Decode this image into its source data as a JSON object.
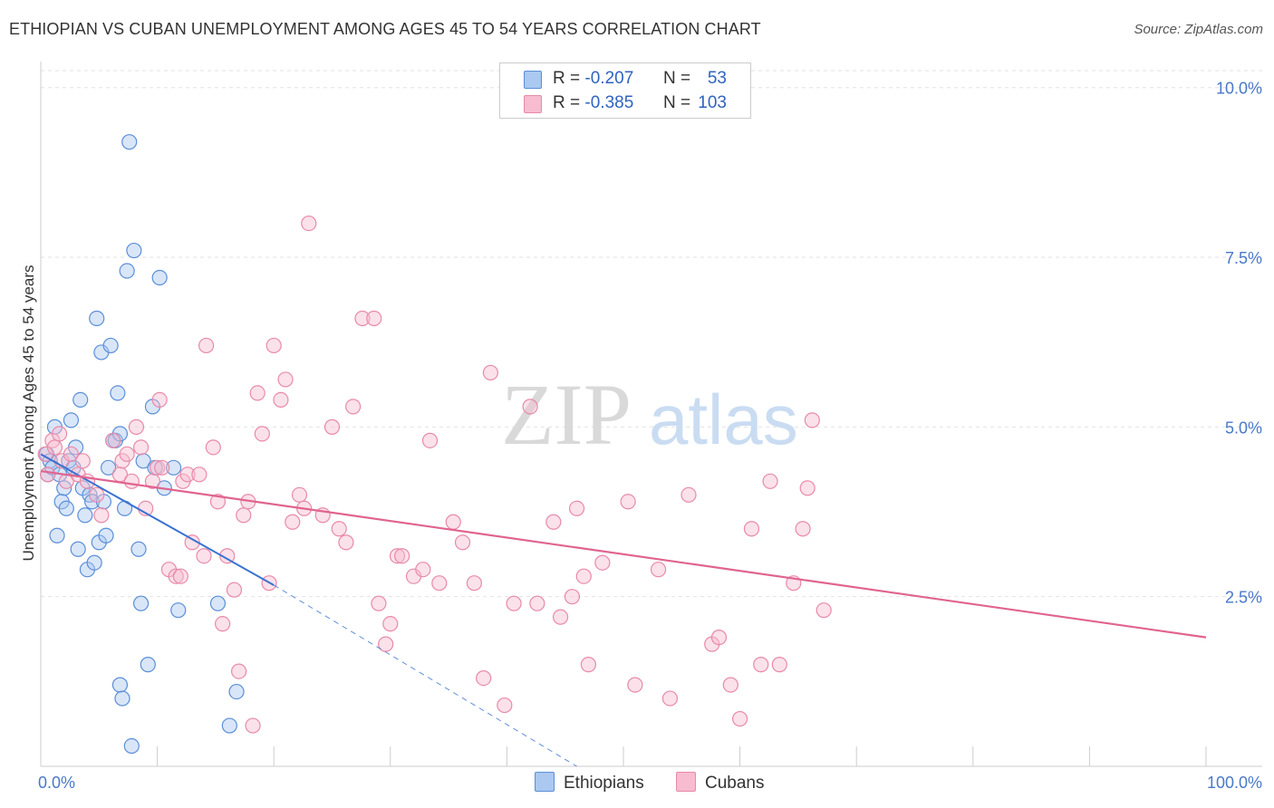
{
  "title": "ETHIOPIAN VS CUBAN UNEMPLOYMENT AMONG AGES 45 TO 54 YEARS CORRELATION CHART",
  "source": "Source: ZipAtlas.com",
  "watermark": {
    "zip": "ZIP",
    "atlas": "atlas"
  },
  "legend": {
    "rows": [
      {
        "r_label": "R =",
        "r_value": "-0.207",
        "n_label": "N =",
        "n_value": "53"
      },
      {
        "r_label": "R =",
        "r_value": "-0.385",
        "n_label": "N =",
        "n_value": "103"
      }
    ],
    "bottom": [
      {
        "label": "Ethiopians"
      },
      {
        "label": "Cubans"
      }
    ]
  },
  "colors": {
    "ethiopians_fill": "#aac8f0",
    "ethiopians_stroke": "#5b8fd8",
    "ethiopians_line": "#3a72d0",
    "cubans_fill": "#f7bcd0",
    "cubans_stroke": "#e88aa8",
    "cubans_line": "#e0648f",
    "grid": "#e2e2e2",
    "axis": "#cccccc"
  },
  "chart_data": {
    "type": "scatter",
    "title": "ETHIOPIAN VS CUBAN UNEMPLOYMENT AMONG AGES 45 TO 54 YEARS CORRELATION CHART",
    "xlabel": "",
    "ylabel": "Unemployment Among Ages 45 to 54 years",
    "xlim": [
      0,
      100
    ],
    "ylim": [
      0,
      10.25
    ],
    "x_tick_labels": [
      "0.0%",
      "100.0%"
    ],
    "y_ticks": [
      2.5,
      5.0,
      7.5,
      10.0
    ],
    "y_tick_labels": [
      "2.5%",
      "5.0%",
      "7.5%",
      "10.0%"
    ],
    "series": [
      {
        "name": "Ethiopians",
        "points": [
          [
            0.5,
            4.6
          ],
          [
            0.6,
            4.3
          ],
          [
            0.8,
            4.5
          ],
          [
            1.0,
            4.4
          ],
          [
            1.2,
            5.0
          ],
          [
            1.4,
            3.4
          ],
          [
            1.6,
            4.3
          ],
          [
            1.8,
            3.9
          ],
          [
            2.0,
            4.1
          ],
          [
            2.2,
            3.8
          ],
          [
            2.4,
            4.5
          ],
          [
            2.6,
            5.1
          ],
          [
            2.8,
            4.4
          ],
          [
            3.0,
            4.7
          ],
          [
            3.2,
            3.2
          ],
          [
            3.4,
            5.4
          ],
          [
            3.6,
            4.1
          ],
          [
            3.8,
            3.7
          ],
          [
            4.0,
            2.9
          ],
          [
            4.2,
            4.0
          ],
          [
            4.4,
            3.9
          ],
          [
            4.6,
            3.0
          ],
          [
            4.8,
            6.6
          ],
          [
            5.0,
            3.3
          ],
          [
            5.2,
            6.1
          ],
          [
            5.4,
            3.9
          ],
          [
            5.6,
            3.4
          ],
          [
            5.8,
            4.4
          ],
          [
            6.0,
            6.2
          ],
          [
            6.2,
            4.8
          ],
          [
            6.4,
            4.8
          ],
          [
            6.6,
            5.5
          ],
          [
            6.8,
            4.9
          ],
          [
            6.8,
            1.2
          ],
          [
            7.0,
            1.0
          ],
          [
            7.2,
            3.8
          ],
          [
            7.4,
            7.3
          ],
          [
            7.6,
            9.2
          ],
          [
            7.8,
            0.3
          ],
          [
            8.0,
            7.6
          ],
          [
            8.4,
            3.2
          ],
          [
            8.6,
            2.4
          ],
          [
            8.8,
            4.5
          ],
          [
            9.2,
            1.5
          ],
          [
            9.6,
            5.3
          ],
          [
            9.8,
            4.4
          ],
          [
            10.2,
            7.2
          ],
          [
            10.6,
            4.1
          ],
          [
            11.4,
            4.4
          ],
          [
            11.8,
            2.3
          ],
          [
            15.2,
            2.4
          ],
          [
            16.2,
            0.6
          ],
          [
            16.8,
            1.1
          ]
        ]
      },
      {
        "name": "Cubans",
        "points": [
          [
            0.4,
            4.6
          ],
          [
            0.6,
            4.3
          ],
          [
            1.0,
            4.8
          ],
          [
            1.2,
            4.7
          ],
          [
            1.6,
            4.9
          ],
          [
            1.8,
            4.5
          ],
          [
            2.2,
            4.2
          ],
          [
            2.6,
            4.6
          ],
          [
            3.2,
            4.3
          ],
          [
            3.6,
            4.5
          ],
          [
            4.0,
            4.2
          ],
          [
            4.8,
            4.0
          ],
          [
            5.2,
            3.7
          ],
          [
            6.2,
            4.8
          ],
          [
            6.8,
            4.3
          ],
          [
            7.0,
            4.5
          ],
          [
            7.4,
            4.6
          ],
          [
            7.8,
            4.2
          ],
          [
            8.2,
            5.0
          ],
          [
            8.6,
            4.7
          ],
          [
            9.0,
            3.8
          ],
          [
            9.6,
            4.2
          ],
          [
            10.0,
            4.4
          ],
          [
            10.2,
            5.4
          ],
          [
            10.4,
            4.4
          ],
          [
            11.0,
            2.9
          ],
          [
            11.6,
            2.8
          ],
          [
            12.0,
            2.8
          ],
          [
            12.2,
            4.2
          ],
          [
            12.6,
            4.3
          ],
          [
            13.0,
            3.3
          ],
          [
            13.6,
            4.3
          ],
          [
            14.0,
            3.1
          ],
          [
            14.2,
            6.2
          ],
          [
            14.8,
            4.7
          ],
          [
            15.2,
            3.9
          ],
          [
            15.6,
            2.1
          ],
          [
            16.0,
            3.1
          ],
          [
            16.6,
            2.6
          ],
          [
            17.0,
            1.4
          ],
          [
            17.4,
            3.7
          ],
          [
            17.8,
            3.9
          ],
          [
            18.2,
            0.6
          ],
          [
            18.6,
            5.5
          ],
          [
            19.0,
            4.9
          ],
          [
            19.6,
            2.7
          ],
          [
            20.0,
            6.2
          ],
          [
            20.6,
            5.4
          ],
          [
            21.0,
            5.7
          ],
          [
            21.6,
            3.6
          ],
          [
            22.2,
            4.0
          ],
          [
            22.6,
            3.8
          ],
          [
            23.0,
            8.0
          ],
          [
            24.2,
            3.7
          ],
          [
            25.0,
            5.0
          ],
          [
            25.6,
            3.5
          ],
          [
            26.2,
            3.3
          ],
          [
            26.8,
            5.3
          ],
          [
            27.6,
            6.6
          ],
          [
            28.6,
            6.6
          ],
          [
            29.0,
            2.4
          ],
          [
            29.6,
            1.8
          ],
          [
            30.0,
            2.1
          ],
          [
            30.6,
            3.1
          ],
          [
            31.0,
            3.1
          ],
          [
            32.0,
            2.8
          ],
          [
            32.8,
            2.9
          ],
          [
            33.4,
            4.8
          ],
          [
            34.2,
            2.7
          ],
          [
            35.4,
            3.6
          ],
          [
            36.2,
            3.3
          ],
          [
            37.2,
            2.7
          ],
          [
            38.0,
            1.3
          ],
          [
            38.6,
            5.8
          ],
          [
            39.8,
            0.9
          ],
          [
            40.6,
            2.4
          ],
          [
            42.0,
            5.3
          ],
          [
            42.6,
            2.4
          ],
          [
            44.0,
            3.6
          ],
          [
            44.6,
            2.2
          ],
          [
            45.6,
            2.5
          ],
          [
            46.0,
            3.8
          ],
          [
            46.6,
            2.8
          ],
          [
            47.0,
            1.5
          ],
          [
            48.2,
            3.0
          ],
          [
            50.4,
            3.9
          ],
          [
            51.0,
            1.2
          ],
          [
            53.0,
            2.9
          ],
          [
            54.0,
            1.0
          ],
          [
            55.6,
            4.0
          ],
          [
            57.6,
            1.8
          ],
          [
            58.2,
            1.9
          ],
          [
            59.2,
            1.2
          ],
          [
            60.0,
            0.7
          ],
          [
            61.0,
            3.5
          ],
          [
            61.8,
            1.5
          ],
          [
            62.6,
            4.2
          ],
          [
            63.4,
            1.5
          ],
          [
            64.6,
            2.7
          ],
          [
            65.4,
            3.5
          ],
          [
            65.8,
            4.1
          ],
          [
            66.2,
            5.1
          ],
          [
            67.2,
            2.3
          ]
        ]
      }
    ],
    "trend_lines": [
      {
        "series": "Ethiopians",
        "x": [
          0,
          20
        ],
        "y": [
          4.6,
          2.67
        ],
        "dashed_extension": {
          "x": [
            20,
            46
          ],
          "y": [
            2.67,
            0.0
          ]
        }
      },
      {
        "series": "Cubans",
        "x": [
          0,
          100
        ],
        "y": [
          4.35,
          1.9
        ]
      }
    ]
  }
}
